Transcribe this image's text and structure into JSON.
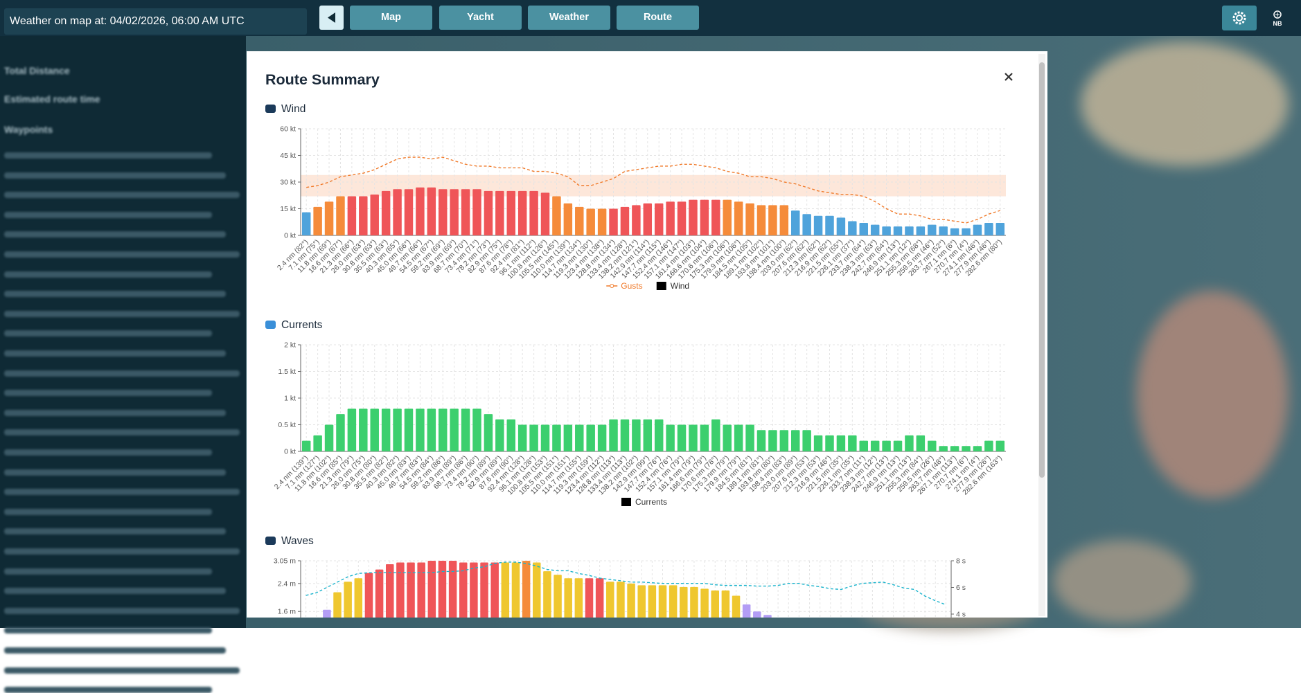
{
  "header": {
    "weather_time": "Weather on map at: 04/02/2026, 06:00 AM UTC",
    "nav": [
      "Map",
      "Yacht",
      "Weather",
      "Route"
    ],
    "badge": "NB"
  },
  "sidebar": {
    "labels": [
      "Total Distance",
      "Estimated route time",
      "Waypoints"
    ]
  },
  "modal": {
    "title": "Route Summary"
  },
  "chart_data": [
    {
      "type": "bar",
      "title": "Wind",
      "categories": [
        "2.4 nm (82°)",
        "7.1 nm (75°)",
        "11.8 nm (69°)",
        "16.6 nm (67°)",
        "21.3 nm (66°)",
        "26.0 nm (63°)",
        "30.8 nm (63°)",
        "35.5 nm (63°)",
        "40.3 nm (65°)",
        "45.0 nm (66°)",
        "49.7 nm (66°)",
        "54.5 nm (67°)",
        "59.2 nm (69°)",
        "63.9 nm (69°)",
        "68.7 nm (70°)",
        "73.4 nm (71°)",
        "78.2 nm (73°)",
        "82.9 nm (75°)",
        "87.6 nm (78°)",
        "92.4 nm (81°)",
        "96.1 nm (112°)",
        "100.8 nm (126°)",
        "105.5 nm (145°)",
        "110.0 nm (139°)",
        "114.7 nm (134°)",
        "119.3 nm (130°)",
        "123.4 nm (138°)",
        "128.8 nm (134°)",
        "133.4 nm (128°)",
        "138.2 nm (121°)",
        "142.9 nm (114°)",
        "147.7 nm (115°)",
        "152.4 nm (146°)",
        "157.1 nm (147°)",
        "161.4 nm (103°)",
        "166.6 nm (104°)",
        "170.6 nm (106°)",
        "175.3 nm (106°)",
        "179.9 nm (106°)",
        "184.5 nm (105°)",
        "189.1 nm (102°)",
        "193.8 nm (101°)",
        "198.4 nm (100°)",
        "203.0 nm (62°)",
        "207.6 nm (62°)",
        "212.3 nm (62°)",
        "216.9 nm (62°)",
        "221.5 nm (55°)",
        "226.1 nm (37°)",
        "233.7 nm (64°)",
        "238.3 nm (63°)",
        "242.7 nm (64°)",
        "246.9 nm (13°)",
        "251.1 nm (12°)",
        "255.3 nm (68°)",
        "259.5 nm (46°)",
        "263.7 nm (52°)",
        "267.1 nm (6°)",
        "270.7 nm (4°)",
        "274.1 nm (46°)",
        "277.9 nm (46°)",
        "282.6 nm (80°)"
      ],
      "series": [
        {
          "name": "Gusts",
          "type": "line",
          "color": "#f07a2a",
          "values": [
            27,
            28,
            30,
            33,
            34,
            35,
            37,
            40,
            43,
            44,
            44,
            43,
            44,
            42,
            40,
            39,
            39,
            38,
            38,
            38,
            36,
            36,
            35,
            33,
            28,
            28,
            30,
            32,
            36,
            37,
            38,
            39,
            39,
            40,
            40,
            39,
            38,
            36,
            35,
            33,
            33,
            32,
            30,
            29,
            27,
            25,
            24,
            23,
            23,
            22,
            19,
            15,
            12,
            12,
            11,
            9,
            9,
            8,
            7,
            9,
            12,
            14
          ]
        },
        {
          "name": "Wind",
          "type": "bar",
          "color": "#000000",
          "values": [
            13,
            16,
            19,
            22,
            22,
            22,
            23,
            25,
            26,
            26,
            27,
            27,
            26,
            26,
            26,
            26,
            25,
            25,
            25,
            25,
            25,
            24,
            22,
            18,
            16,
            15,
            15,
            15,
            16,
            17,
            18,
            18,
            19,
            19,
            20,
            20,
            20,
            20,
            19,
            18,
            17,
            17,
            17,
            14,
            12,
            11,
            11,
            10,
            8,
            7,
            6,
            5,
            5,
            5,
            5,
            6,
            5,
            4,
            4,
            6,
            7,
            7
          ],
          "colors": [
            "#4fa3db",
            "#f58b3a",
            "#f58b3a",
            "#f58b3a",
            "#ef5558",
            "#ef5558",
            "#ef5558",
            "#ef5558",
            "#ef5558",
            "#ef5558",
            "#ef5558",
            "#ef5558",
            "#ef5558",
            "#ef5558",
            "#ef5558",
            "#ef5558",
            "#ef5558",
            "#ef5558",
            "#ef5558",
            "#ef5558",
            "#ef5558",
            "#ef5558",
            "#f58b3a",
            "#f58b3a",
            "#f58b3a",
            "#f58b3a",
            "#f58b3a",
            "#ef5558",
            "#ef5558",
            "#ef5558",
            "#ef5558",
            "#ef5558",
            "#ef5558",
            "#ef5558",
            "#ef5558",
            "#ef5558",
            "#ef5558",
            "#f58b3a",
            "#f58b3a",
            "#f58b3a",
            "#f58b3a",
            "#f58b3a",
            "#f58b3a",
            "#4fa3db",
            "#4fa3db",
            "#4fa3db",
            "#4fa3db",
            "#4fa3db",
            "#4fa3db",
            "#4fa3db",
            "#4fa3db",
            "#4fa3db",
            "#4fa3db",
            "#4fa3db",
            "#4fa3db",
            "#4fa3db",
            "#4fa3db",
            "#4fa3db",
            "#4fa3db",
            "#4fa3db",
            "#4fa3db",
            "#4fa3db"
          ]
        }
      ],
      "highlight_range": [
        22,
        34
      ],
      "highlight_color": "#fde3d3",
      "ylim": [
        0,
        60
      ],
      "yticks": [
        {
          "value": 0,
          "label": "0 kt"
        },
        {
          "value": 15,
          "label": "15 kt"
        },
        {
          "value": 30,
          "label": "30 kt"
        },
        {
          "value": 45,
          "label": "45 kt"
        },
        {
          "value": 60,
          "label": "60 kt"
        }
      ],
      "grid": true,
      "legend": "bottom"
    },
    {
      "type": "bar",
      "title": "Currents",
      "categories": [
        "2.4 nm (139°)",
        "7.1 nm (127°)",
        "11.8 nm (102°)",
        "16.6 nm (85°)",
        "21.3 nm (79°)",
        "26.0 nm (75°)",
        "30.8 nm (80°)",
        "35.5 nm (82°)",
        "40.3 nm (82°)",
        "45.0 nm (83°)",
        "49.7 nm (83°)",
        "54.5 nm (84°)",
        "59.2 nm (86°)",
        "63.9 nm (89°)",
        "68.7 nm (86°)",
        "73.4 nm (90°)",
        "78.2 nm (89°)",
        "82.9 nm (89°)",
        "87.6 nm (90°)",
        "92.4 nm (128°)",
        "96.1 nm (128°)",
        "100.8 nm (153°)",
        "105.5 nm (151°)",
        "110.0 nm (151°)",
        "114.7 nm (155°)",
        "119.3 nm (159°)",
        "123.4 nm (112°)",
        "128.8 nm (113°)",
        "133.4 nm (113°)",
        "138.2 nm (102°)",
        "142.9 nm (99°)",
        "147.7 nm (76°)",
        "152.4 nm (76°)",
        "157.1 nm (79°)",
        "161.4 nm (79°)",
        "166.6 nm (79°)",
        "170.6 nm (78°)",
        "175.3 nm (79°)",
        "179.9 nm (79°)",
        "184.5 nm (81°)",
        "189.1 nm (81°)",
        "193.8 nm (80°)",
        "198.4 nm (83°)",
        "203.0 nm (89°)",
        "207.6 nm (53°)",
        "212.3 nm (53°)",
        "216.9 nm (46°)",
        "221.5 nm (35°)",
        "226.1 nm (35°)",
        "233.7 nm (11°)",
        "238.3 nm (12°)",
        "242.7 nm (13°)",
        "246.9 nm (13°)",
        "251.1 nm (13°)",
        "255.3 nm (84°)",
        "259.5 nm (26°)",
        "263.7 nm (48°)",
        "267.1 nm (113°)",
        "270.7 nm (6°)",
        "274.1 nm (4°)",
        "277.9 nm (26°)",
        "282.6 nm (163°)"
      ],
      "series": [
        {
          "name": "Currents",
          "type": "bar",
          "color": "#000000",
          "bar_color": "#3ccf6e",
          "values": [
            0.2,
            0.3,
            0.5,
            0.7,
            0.8,
            0.8,
            0.8,
            0.8,
            0.8,
            0.8,
            0.8,
            0.8,
            0.8,
            0.8,
            0.8,
            0.8,
            0.7,
            0.6,
            0.6,
            0.5,
            0.5,
            0.5,
            0.5,
            0.5,
            0.5,
            0.5,
            0.5,
            0.6,
            0.6,
            0.6,
            0.6,
            0.6,
            0.5,
            0.5,
            0.5,
            0.5,
            0.6,
            0.5,
            0.5,
            0.5,
            0.4,
            0.4,
            0.4,
            0.4,
            0.4,
            0.3,
            0.3,
            0.3,
            0.3,
            0.2,
            0.2,
            0.2,
            0.2,
            0.3,
            0.3,
            0.2,
            0.1,
            0.1,
            0.1,
            0.1,
            0.2,
            0.2
          ]
        }
      ],
      "ylim": [
        0,
        2
      ],
      "yticks": [
        {
          "value": 0,
          "label": "0 kt"
        },
        {
          "value": 0.5,
          "label": "0.5 kt"
        },
        {
          "value": 1,
          "label": "1 kt"
        },
        {
          "value": 1.5,
          "label": "1.5 kt"
        },
        {
          "value": 2,
          "label": "2 kt"
        }
      ],
      "grid": true,
      "legend": "bottom"
    },
    {
      "type": "bar",
      "title": "Waves",
      "series": [
        {
          "type": "bar",
          "values": [
            null,
            null,
            1.65,
            2.15,
            2.45,
            2.55,
            2.7,
            2.8,
            2.95,
            3.0,
            3.0,
            3.0,
            3.05,
            3.05,
            3.05,
            3.0,
            3.0,
            3.0,
            3.0,
            3.0,
            3.0,
            3.05,
            3.0,
            2.75,
            2.65,
            2.55,
            2.55,
            2.55,
            2.55,
            2.45,
            2.45,
            2.4,
            2.35,
            2.35,
            2.35,
            2.35,
            2.3,
            2.3,
            2.25,
            2.2,
            2.2,
            2.05,
            1.8,
            1.6,
            1.5,
            null,
            null,
            null,
            null,
            null,
            null,
            null,
            null,
            null,
            null,
            null,
            null,
            null,
            null,
            null,
            null,
            null
          ],
          "colors": [
            null,
            null,
            "#b39df5",
            "#efc72f",
            "#efc72f",
            "#efc72f",
            "#ef5558",
            "#ef5558",
            "#ef5558",
            "#ef5558",
            "#ef5558",
            "#ef5558",
            "#ef5558",
            "#ef5558",
            "#ef5558",
            "#ef5558",
            "#ef5558",
            "#ef5558",
            "#ef5558",
            "#efc72f",
            "#efc72f",
            "#f58b3a",
            "#efc72f",
            "#efc72f",
            "#efc72f",
            "#efc72f",
            "#efc72f",
            "#ef5558",
            "#ef5558",
            "#efc72f",
            "#efc72f",
            "#efc72f",
            "#efc72f",
            "#efc72f",
            "#efc72f",
            "#efc72f",
            "#efc72f",
            "#efc72f",
            "#efc72f",
            "#efc72f",
            "#efc72f",
            "#efc72f",
            "#b39df5",
            "#b39df5",
            "#b39df5",
            null,
            null,
            null,
            null,
            null,
            null,
            null,
            null,
            null,
            null,
            null,
            null,
            null,
            null,
            null,
            null,
            null
          ]
        },
        {
          "type": "line",
          "axis": "y2",
          "color": "#1ab3cc",
          "values": [
            5.4,
            5.6,
            6.0,
            6.4,
            6.8,
            7.05,
            7.1,
            7.1,
            7.1,
            7.1,
            7.1,
            7.1,
            7.1,
            7.2,
            7.2,
            7.25,
            7.45,
            7.55,
            7.8,
            7.9,
            7.9,
            7.8,
            7.6,
            7.35,
            7.25,
            7.25,
            7.05,
            6.9,
            6.7,
            6.6,
            6.5,
            6.4,
            6.4,
            6.35,
            6.3,
            6.3,
            6.3,
            6.3,
            6.3,
            6.2,
            6.15,
            6.15,
            6.15,
            6.1,
            6.1,
            6.15,
            6.3,
            6.3,
            6.15,
            6.05,
            5.9,
            5.85,
            6.1,
            6.3,
            6.35,
            6.4,
            6.2,
            5.95,
            5.85,
            5.35,
            5.0,
            4.7
          ]
        }
      ],
      "ylim": [
        0,
        3.05
      ],
      "yticks": [
        {
          "value": 1.6,
          "label": "1.6 m"
        },
        {
          "value": 2.4,
          "label": "2.4 m"
        },
        {
          "value": 3.05,
          "label": "3.05 m"
        }
      ],
      "y2lim": [
        0,
        8
      ],
      "y2ticks": [
        {
          "value": 4,
          "label": "4 s"
        },
        {
          "value": 6,
          "label": "6 s"
        },
        {
          "value": 8,
          "label": "8 s"
        }
      ],
      "grid": true
    }
  ]
}
